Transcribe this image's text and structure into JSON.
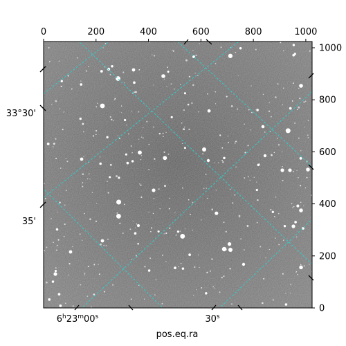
{
  "figure": {
    "xlabel": "pos.eq.ra",
    "pixel_axes": {
      "x_range": [
        0,
        1024
      ],
      "y_range": [
        0,
        1024
      ],
      "top_ticks": [
        0,
        200,
        400,
        600,
        800,
        1000
      ],
      "right_ticks": [
        0,
        200,
        400,
        600,
        800,
        1000
      ]
    },
    "world_axes": {
      "left_ticks": [
        "33°30'",
        "35'"
      ],
      "bottom_ticks": [
        "6h23m00s",
        "30s"
      ],
      "bottom_tick_parts": [
        {
          "h": "6",
          "hs": "h",
          "m": "23",
          "ms": "m",
          "s": "00",
          "ss": "s"
        },
        {
          "s": "30",
          "ss": "s"
        }
      ]
    },
    "grid": {
      "visible": true,
      "color": "#33cccc",
      "style": "dashed"
    },
    "image": {
      "type": "grayscale star field",
      "background_color": "#6e6e6e"
    }
  }
}
